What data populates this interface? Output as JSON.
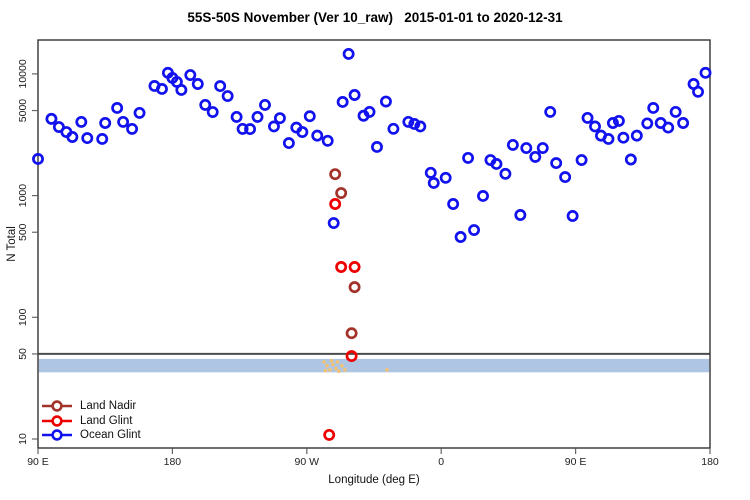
{
  "title": "55S-50S November (Ver 10_raw)   2015-01-01 to 2020-12-31",
  "axes": {
    "x": {
      "label": "Longitude (deg E)",
      "ticks": [
        {
          "v": 90,
          "label": "90 E"
        },
        {
          "v": 180,
          "label": "180"
        },
        {
          "v": 270,
          "label": "90 W"
        },
        {
          "v": 360,
          "label": "0"
        },
        {
          "v": 450,
          "label": "90 E"
        },
        {
          "v": 540,
          "label": "180"
        }
      ]
    },
    "y": {
      "label": "N Total",
      "scale": "log",
      "ticks": [
        {
          "v": 10,
          "label": "10"
        },
        {
          "v": 50,
          "label": "50"
        },
        {
          "v": 100,
          "label": "100"
        },
        {
          "v": 500,
          "label": "500"
        },
        {
          "v": 1000,
          "label": "1000"
        },
        {
          "v": 5000,
          "label": "5000"
        },
        {
          "v": 10000,
          "label": "10000"
        }
      ]
    }
  },
  "annotations": {
    "threshold_line": {
      "n": 50,
      "color": "#4d4d4d"
    },
    "highlight_band": {
      "n_min": 35.3,
      "n_max": 45.5,
      "color": "#AEC6E4"
    },
    "orange_marks": {
      "color": "#F2C272",
      "points": [
        [
          281.5,
          43
        ],
        [
          282.5,
          36.5
        ],
        [
          283.5,
          40
        ],
        [
          285.5,
          37
        ],
        [
          286.5,
          44
        ],
        [
          287.5,
          41
        ],
        [
          289.5,
          38
        ],
        [
          290.5,
          43
        ],
        [
          291.5,
          36
        ],
        [
          293.5,
          40
        ],
        [
          295.5,
          37
        ],
        [
          323.7,
          37
        ]
      ]
    }
  },
  "chart_data": {
    "type": "scatter",
    "title": "55S-50S November (Ver 10_raw)   2015-01-01 to 2020-12-31",
    "xlabel": "Longitude (deg E)",
    "ylabel": "N Total",
    "xlim": [
      90,
      540
    ],
    "ylim": [
      10,
      19000
    ],
    "yscale": "log",
    "x_axis_note": "longitude continues eastward: 90E,180,90W,0,90E,180 mapped to 90..540",
    "series": [
      {
        "name": "Land Nadir",
        "color": "#A3322A",
        "points": [
          [
            289,
            1500
          ],
          [
            293,
            1050
          ],
          [
            302,
            177
          ],
          [
            300,
            74
          ]
        ]
      },
      {
        "name": "Land Glint",
        "color": "#EE0000",
        "points": [
          [
            289,
            853
          ],
          [
            293,
            259
          ],
          [
            302,
            259
          ],
          [
            300,
            48
          ],
          [
            285,
            10.8
          ]
        ]
      },
      {
        "name": "Ocean Glint",
        "color": "#1212EE",
        "points": [
          [
            90,
            2000
          ],
          [
            99,
            4270
          ],
          [
            104,
            3660
          ],
          [
            109,
            3330
          ],
          [
            113,
            3030
          ],
          [
            119,
            4030
          ],
          [
            123,
            2970
          ],
          [
            133,
            2920
          ],
          [
            135,
            3950
          ],
          [
            143,
            5250
          ],
          [
            147,
            4030
          ],
          [
            153,
            3530
          ],
          [
            158,
            4780
          ],
          [
            168,
            7960
          ],
          [
            173,
            7520
          ],
          [
            177,
            10200
          ],
          [
            180,
            9270
          ],
          [
            183,
            8590
          ],
          [
            186,
            7380
          ],
          [
            192,
            9790
          ],
          [
            197,
            8260
          ],
          [
            202,
            5560
          ],
          [
            207,
            4860
          ],
          [
            212,
            7940
          ],
          [
            217,
            6580
          ],
          [
            223,
            4430
          ],
          [
            227,
            3530
          ],
          [
            232,
            3520
          ],
          [
            237,
            4430
          ],
          [
            242,
            5560
          ],
          [
            248,
            3700
          ],
          [
            252,
            4330
          ],
          [
            258,
            2700
          ],
          [
            263,
            3620
          ],
          [
            267,
            3330
          ],
          [
            272,
            4490
          ],
          [
            277,
            3110
          ],
          [
            284,
            2820
          ],
          [
            288,
            595
          ],
          [
            294,
            5880
          ],
          [
            298,
            14600
          ],
          [
            302,
            6710
          ],
          [
            308,
            4530
          ],
          [
            312,
            4870
          ],
          [
            317,
            2510
          ],
          [
            323,
            5930
          ],
          [
            328,
            3540
          ],
          [
            338,
            4030
          ],
          [
            342,
            3880
          ],
          [
            346,
            3700
          ],
          [
            353,
            1540
          ],
          [
            355,
            1270
          ],
          [
            363,
            1400
          ],
          [
            368,
            853
          ],
          [
            373,
            457
          ],
          [
            378,
            2040
          ],
          [
            382,
            521
          ],
          [
            388,
            993
          ],
          [
            393,
            1960
          ],
          [
            397,
            1820
          ],
          [
            403,
            1510
          ],
          [
            408,
            2610
          ],
          [
            413,
            693
          ],
          [
            417,
            2460
          ],
          [
            423,
            2080
          ],
          [
            428,
            2460
          ],
          [
            433,
            4870
          ],
          [
            437,
            1850
          ],
          [
            443,
            1420
          ],
          [
            448,
            680
          ],
          [
            454,
            1960
          ],
          [
            458,
            4350
          ],
          [
            463,
            3700
          ],
          [
            467,
            3110
          ],
          [
            472,
            2920
          ],
          [
            475,
            3950
          ],
          [
            479,
            4110
          ],
          [
            482,
            2990
          ],
          [
            487,
            1980
          ],
          [
            491,
            3110
          ],
          [
            498,
            3920
          ],
          [
            502,
            5250
          ],
          [
            507,
            3950
          ],
          [
            512,
            3620
          ],
          [
            517,
            4870
          ],
          [
            522,
            3950
          ],
          [
            529,
            8260
          ],
          [
            532,
            7130
          ],
          [
            537,
            10200
          ]
        ]
      }
    ]
  },
  "legend": {
    "items": [
      {
        "label": "Land Nadir",
        "color": "#A3322A"
      },
      {
        "label": "Land Glint",
        "color": "#EE0000"
      },
      {
        "label": "Ocean Glint",
        "color": "#1212EE"
      }
    ]
  }
}
